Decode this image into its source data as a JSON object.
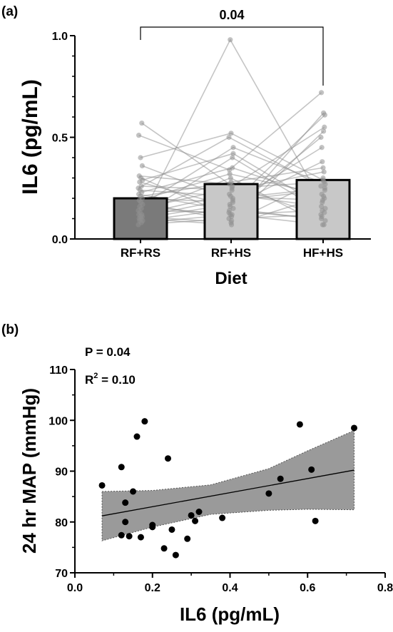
{
  "panel_a_label": "(a)",
  "panel_b_label": "(b)",
  "chart_data": [
    {
      "type": "bar",
      "panel": "(a)",
      "categories": [
        "RF+RS",
        "RF+HS",
        "HF+HS"
      ],
      "values": [
        0.2,
        0.27,
        0.29
      ],
      "xlabel": "Diet",
      "ylabel": "IL6 (pg/mL)",
      "ylim": [
        0,
        1.0
      ],
      "yticks": [
        "0.0",
        "0.5",
        "1.0"
      ],
      "bar_colors": [
        "#7a7a7a",
        "#c8c8c8",
        "#c8c8c8"
      ],
      "annotation": {
        "text": "0.04",
        "between": [
          "RF+RS",
          "HF+HS"
        ]
      },
      "paired_lines": [
        [
          0.07,
          0.1,
          0.12
        ],
        [
          0.08,
          0.12,
          0.07
        ],
        [
          0.09,
          0.98,
          0.18
        ],
        [
          0.09,
          0.15,
          0.09
        ],
        [
          0.1,
          0.07,
          0.21
        ],
        [
          0.1,
          0.17,
          0.45
        ],
        [
          0.11,
          0.2,
          0.25
        ],
        [
          0.11,
          0.08,
          0.3
        ],
        [
          0.12,
          0.22,
          0.16
        ],
        [
          0.12,
          0.4,
          0.13
        ],
        [
          0.13,
          0.3,
          0.07
        ],
        [
          0.14,
          0.13,
          0.5
        ],
        [
          0.15,
          0.25,
          0.28
        ],
        [
          0.16,
          0.12,
          0.14
        ],
        [
          0.17,
          0.45,
          0.27
        ],
        [
          0.18,
          0.09,
          0.53
        ],
        [
          0.19,
          0.32,
          0.22
        ],
        [
          0.2,
          0.18,
          0.61
        ],
        [
          0.21,
          0.28,
          0.35
        ],
        [
          0.22,
          0.14,
          0.1
        ],
        [
          0.23,
          0.35,
          0.2
        ],
        [
          0.24,
          0.21,
          0.19
        ],
        [
          0.25,
          0.5,
          0.26
        ],
        [
          0.26,
          0.24,
          0.33
        ],
        [
          0.28,
          0.16,
          0.38
        ],
        [
          0.29,
          0.42,
          0.15
        ],
        [
          0.3,
          0.11,
          0.62
        ],
        [
          0.31,
          0.27,
          0.11
        ],
        [
          0.36,
          0.19,
          0.24
        ],
        [
          0.4,
          0.52,
          0.29
        ],
        [
          0.51,
          0.34,
          0.72
        ],
        [
          0.57,
          0.26,
          0.55
        ]
      ]
    },
    {
      "type": "scatter",
      "panel": "(b)",
      "xlabel": "IL6 (pg/mL)",
      "ylabel": "24 hr MAP (mmHg)",
      "xlim": [
        0.0,
        0.8
      ],
      "ylim": [
        70,
        110
      ],
      "xticks": [
        "0.0",
        "0.2",
        "0.4",
        "0.6",
        "0.8"
      ],
      "yticks": [
        "70",
        "80",
        "90",
        "100",
        "110"
      ],
      "stats": {
        "p_text": "P = 0.04",
        "r2_label": "R",
        "r2_sup": "2",
        "r2_value": " = 0.10"
      },
      "points": [
        [
          0.07,
          87.2
        ],
        [
          0.12,
          90.8
        ],
        [
          0.12,
          77.4
        ],
        [
          0.13,
          80.0
        ],
        [
          0.13,
          83.8
        ],
        [
          0.14,
          77.2
        ],
        [
          0.15,
          86.0
        ],
        [
          0.16,
          96.8
        ],
        [
          0.17,
          77.0
        ],
        [
          0.18,
          99.8
        ],
        [
          0.2,
          79.0
        ],
        [
          0.2,
          79.4
        ],
        [
          0.23,
          74.8
        ],
        [
          0.24,
          92.5
        ],
        [
          0.26,
          73.5
        ],
        [
          0.25,
          78.5
        ],
        [
          0.29,
          76.7
        ],
        [
          0.3,
          81.3
        ],
        [
          0.31,
          80.2
        ],
        [
          0.32,
          82.0
        ],
        [
          0.38,
          80.8
        ],
        [
          0.5,
          85.6
        ],
        [
          0.53,
          88.5
        ],
        [
          0.58,
          99.2
        ],
        [
          0.61,
          90.3
        ],
        [
          0.62,
          80.2
        ],
        [
          0.72,
          98.5
        ]
      ],
      "fit": {
        "x": [
          0.07,
          0.72
        ],
        "y": [
          81.2,
          90.2
        ]
      },
      "ci_upper": [
        [
          0.07,
          86.0
        ],
        [
          0.2,
          86.2
        ],
        [
          0.35,
          87.3
        ],
        [
          0.5,
          90.5
        ],
        [
          0.6,
          94.0
        ],
        [
          0.72,
          98.0
        ]
      ],
      "ci_lower": [
        [
          0.07,
          76.3
        ],
        [
          0.2,
          79.0
        ],
        [
          0.35,
          81.5
        ],
        [
          0.5,
          82.3
        ],
        [
          0.6,
          82.5
        ],
        [
          0.72,
          82.4
        ]
      ]
    }
  ]
}
